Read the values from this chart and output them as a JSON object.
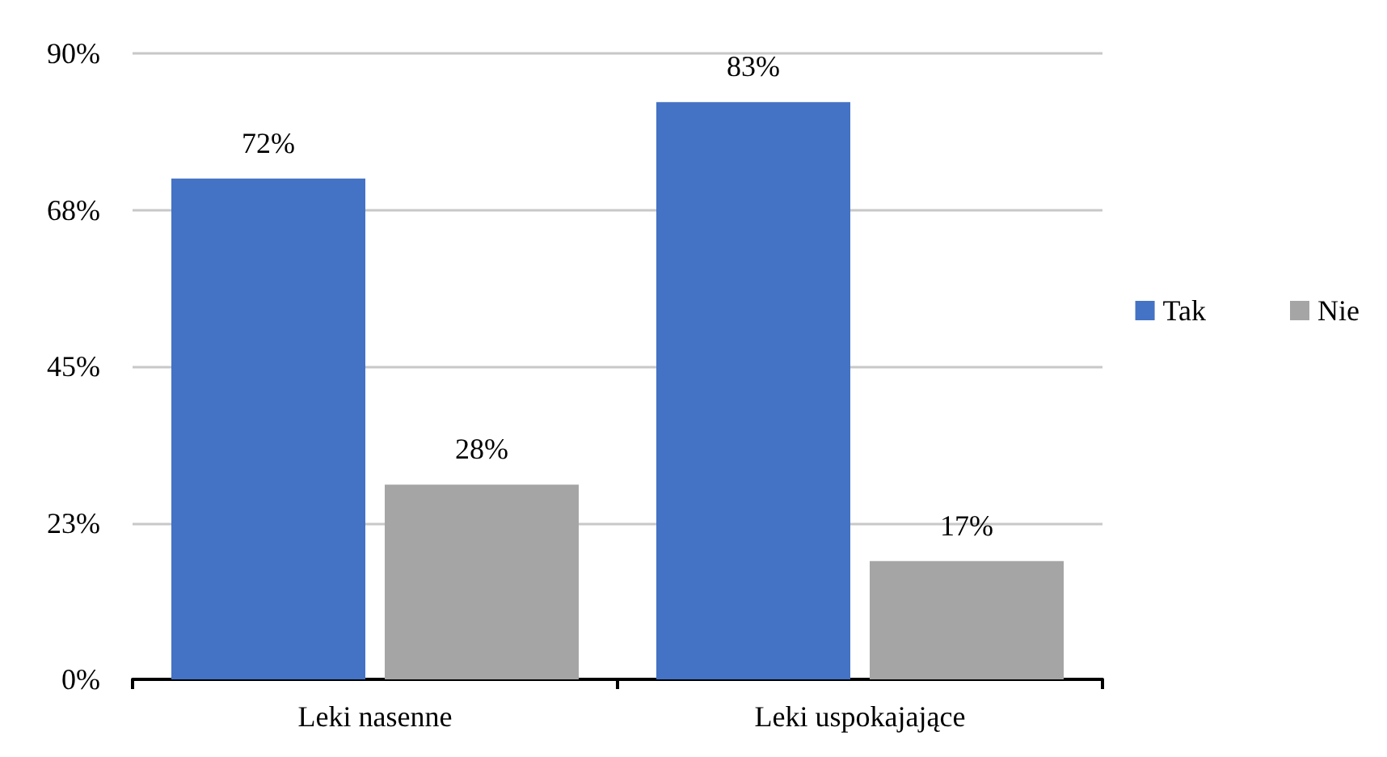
{
  "chart_data": {
    "type": "bar",
    "categories": [
      "Leki nasenne",
      "Leki uspokajające"
    ],
    "series": [
      {
        "name": "Tak",
        "color": "#4472c4",
        "values": [
          72,
          83
        ],
        "value_labels": [
          "72%",
          "83%"
        ]
      },
      {
        "name": "Nie",
        "color": "#a5a5a5",
        "values": [
          28,
          17
        ],
        "value_labels": [
          "28%",
          "17%"
        ]
      }
    ],
    "ylim": [
      0,
      90
    ],
    "yticks": [
      {
        "value": 0,
        "label": "0%"
      },
      {
        "value": 22.5,
        "label": "23%"
      },
      {
        "value": 45,
        "label": "45%"
      },
      {
        "value": 67.5,
        "label": "68%"
      },
      {
        "value": 90,
        "label": "90%"
      }
    ],
    "grid": "y",
    "legend": "right"
  }
}
